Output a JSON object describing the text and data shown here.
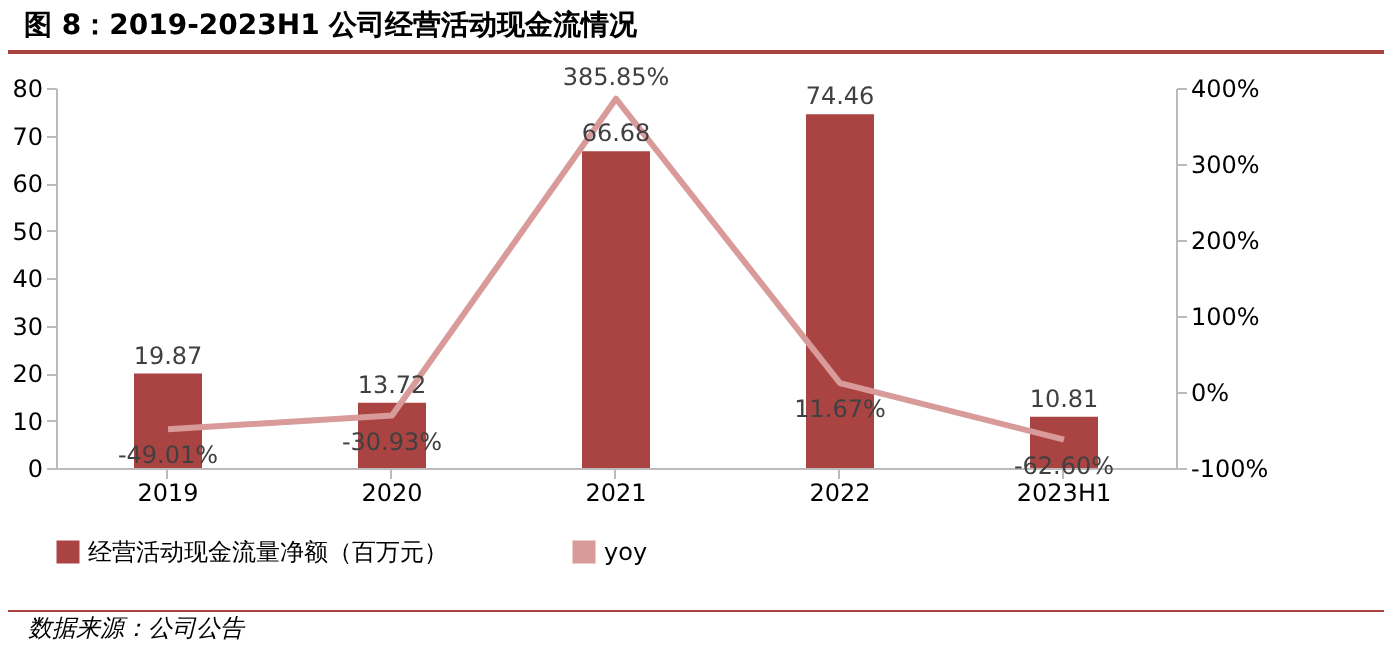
{
  "chart_data": {
    "type": "bar",
    "title": "图 8：2019-2023H1 公司经营活动现金流情况",
    "categories": [
      "2019",
      "2020",
      "2021",
      "2022",
      "2023H1"
    ],
    "series": [
      {
        "name": "经营活动现金流量净额（百万元）",
        "color": "#a94442",
        "values": [
          19.87,
          13.72,
          66.68,
          74.46,
          10.81
        ],
        "value_labels": [
          "19.87",
          "13.72",
          "66.68",
          "74.46",
          "10.81"
        ]
      },
      {
        "name": "yoy",
        "type": "line",
        "axis": "y2",
        "color": "#d99a9a",
        "values": [
          -49.01,
          -30.93,
          385.85,
          11.67,
          -62.6
        ],
        "value_labels": [
          "-49.01%",
          "-30.93%",
          "385.85%",
          "11.67%",
          "-62.60%"
        ]
      }
    ],
    "ylim": [
      0,
      80
    ],
    "yticks": [
      0,
      10,
      20,
      30,
      40,
      50,
      60,
      70,
      80
    ],
    "y2lim": [
      -100,
      400
    ],
    "y2ticks": [
      {
        "value": -100,
        "label": "-100%"
      },
      {
        "value": 0,
        "label": "0%"
      },
      {
        "value": 100,
        "label": "100%"
      },
      {
        "value": 200,
        "label": "200%"
      },
      {
        "value": 300,
        "label": "300%"
      },
      {
        "value": 400,
        "label": "400%"
      }
    ],
    "legend": "bottom",
    "grid": false,
    "annotations": [
      "数据来源：公司公告"
    ]
  }
}
